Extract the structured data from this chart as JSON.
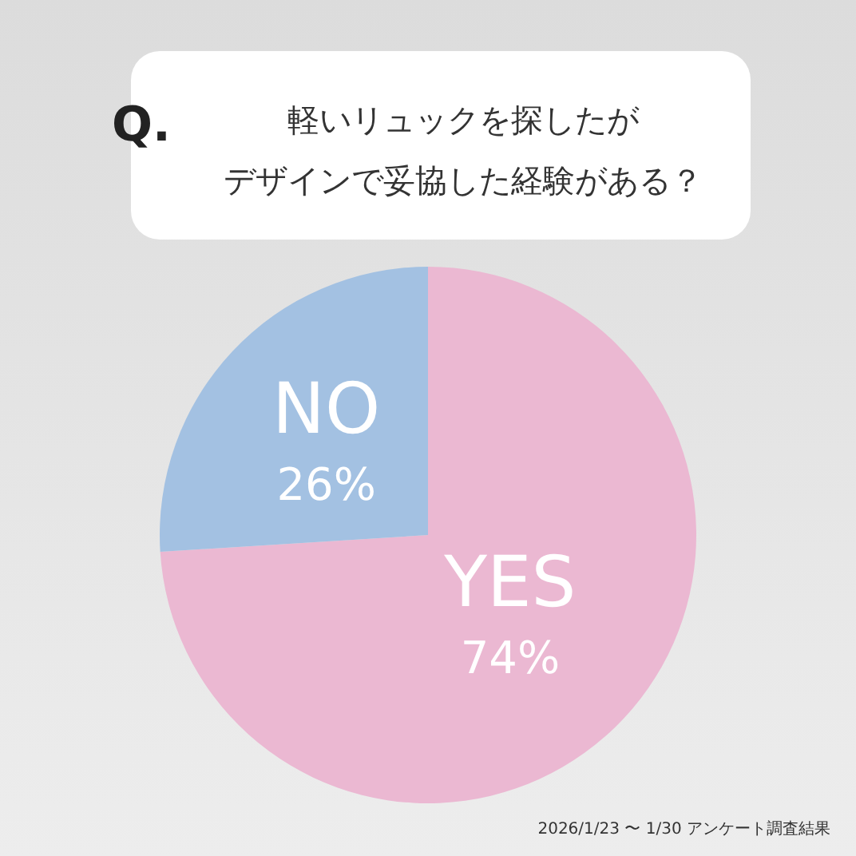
{
  "chart_data": {
    "type": "pie",
    "title": "軽いリュックを探したが",
    "subtitle": "デザインで妥協した経験がある？",
    "categories": [
      "YES",
      "NO"
    ],
    "values": [
      74,
      26
    ],
    "colors": [
      "#ebb8d2",
      "#a3c1e2"
    ],
    "value_labels": [
      "74%",
      "26%"
    ],
    "annotations": [
      "Q.",
      "2026/1/23 〜 1/30 アンケート調査結果"
    ],
    "legend": false
  }
}
